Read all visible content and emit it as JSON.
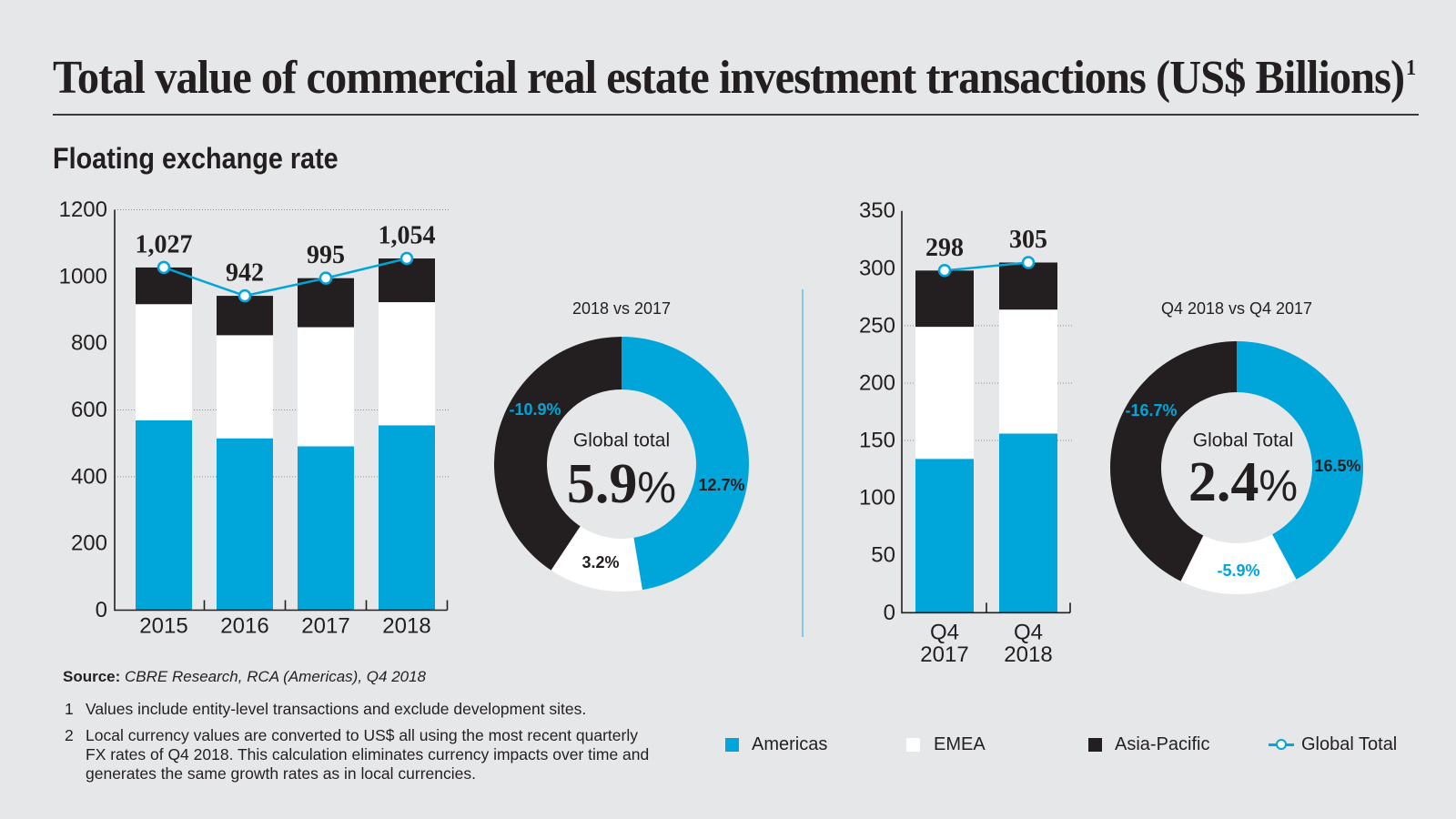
{
  "title": {
    "text": "Total value of commercial real estate investment transactions (US$ Billions)",
    "footnote_ref": "1"
  },
  "subtitle": "Floating exchange rate",
  "colors": {
    "background": "#e6e7e8",
    "text": "#231f20",
    "accent_blue": "#00a5da",
    "negative_label": "#00a5da",
    "divider": "#86c8e6",
    "title_rule": "#3a3a3a"
  },
  "series_colors": {
    "Americas": "#00a5da",
    "EMEA": "#ffffff",
    "Asia-Pacific": "#231f20",
    "Global Total": "#00a5da"
  },
  "chart_data": [
    {
      "type": "bar",
      "stacked": true,
      "title": "",
      "xlabel": "",
      "ylabel": "",
      "categories": [
        "2015",
        "2016",
        "2017",
        "2018"
      ],
      "series": [
        {
          "name": "Americas",
          "values": [
            569,
            515,
            491,
            554
          ]
        },
        {
          "name": "EMEA",
          "values": [
            348,
            309,
            357,
            369
          ]
        },
        {
          "name": "Asia-Pacific",
          "values": [
            110,
            118,
            147,
            131
          ]
        }
      ],
      "line": {
        "name": "Global Total",
        "values": [
          1027,
          942,
          995,
          1054
        ],
        "labels": [
          "1,027",
          "942",
          "995",
          "1,054"
        ]
      },
      "ylim": [
        0,
        1200
      ],
      "yticks": [
        0,
        200,
        400,
        600,
        800,
        1000,
        1200
      ],
      "gridlines": [
        400,
        600,
        1200
      ]
    },
    {
      "type": "pie",
      "donut": true,
      "title": "2018 vs 2017",
      "center_label": "Global total",
      "center_value": "5.9",
      "center_unit": "%",
      "slices": [
        {
          "name": "Americas",
          "value": 12.7,
          "label": "12.7%"
        },
        {
          "name": "EMEA",
          "value": 3.2,
          "label": "3.2%"
        },
        {
          "name": "Asia-Pacific",
          "value": -10.9,
          "label": "-10.9%"
        }
      ]
    },
    {
      "type": "bar",
      "stacked": true,
      "title": "",
      "xlabel": "",
      "ylabel": "",
      "categories": [
        "Q4 2017",
        "Q4 2018"
      ],
      "category_label_lines": [
        [
          "Q4",
          "2017"
        ],
        [
          "Q4",
          "2018"
        ]
      ],
      "series": [
        {
          "name": "Americas",
          "values": [
            134,
            156
          ]
        },
        {
          "name": "EMEA",
          "values": [
            115,
            108
          ]
        },
        {
          "name": "Asia-Pacific",
          "values": [
            49,
            41
          ]
        }
      ],
      "line": {
        "name": "Global Total",
        "values": [
          298,
          305
        ],
        "labels": [
          "298",
          "305"
        ]
      },
      "ylim": [
        0,
        350
      ],
      "yticks": [
        0,
        50,
        100,
        150,
        200,
        250,
        300,
        350
      ],
      "gridlines": [
        150,
        200,
        250
      ]
    },
    {
      "type": "pie",
      "donut": true,
      "title": "Q4 2018 vs Q4 2017",
      "center_label": "Global Total",
      "center_value": "2.4",
      "center_unit": "%",
      "slices": [
        {
          "name": "Americas",
          "value": 16.5,
          "label": "16.5%"
        },
        {
          "name": "EMEA",
          "value": -5.9,
          "label": "-5.9%"
        },
        {
          "name": "Asia-Pacific",
          "value": -16.7,
          "label": "-16.7%"
        }
      ]
    }
  ],
  "legend": {
    "items": [
      {
        "label": "Americas",
        "series": "Americas",
        "marker": "square"
      },
      {
        "label": "EMEA",
        "series": "EMEA",
        "marker": "square"
      },
      {
        "label": "Asia-Pacific",
        "series": "Asia-Pacific",
        "marker": "square"
      },
      {
        "label": "Global Total",
        "series": "Global Total",
        "marker": "line-circle"
      }
    ]
  },
  "source": {
    "label": "Source:",
    "text": "CBRE Research, RCA (Americas), Q4 2018"
  },
  "footnotes": [
    {
      "number": "1",
      "lines": [
        "Values include entity-level transactions and exclude development sites."
      ]
    },
    {
      "number": "2",
      "lines": [
        "Local currency values are converted to US$ all using the most recent quarterly",
        "FX rates of Q4 2018. This calculation eliminates currency impacts over time and",
        "generates the same growth rates as in local currencies."
      ]
    }
  ]
}
